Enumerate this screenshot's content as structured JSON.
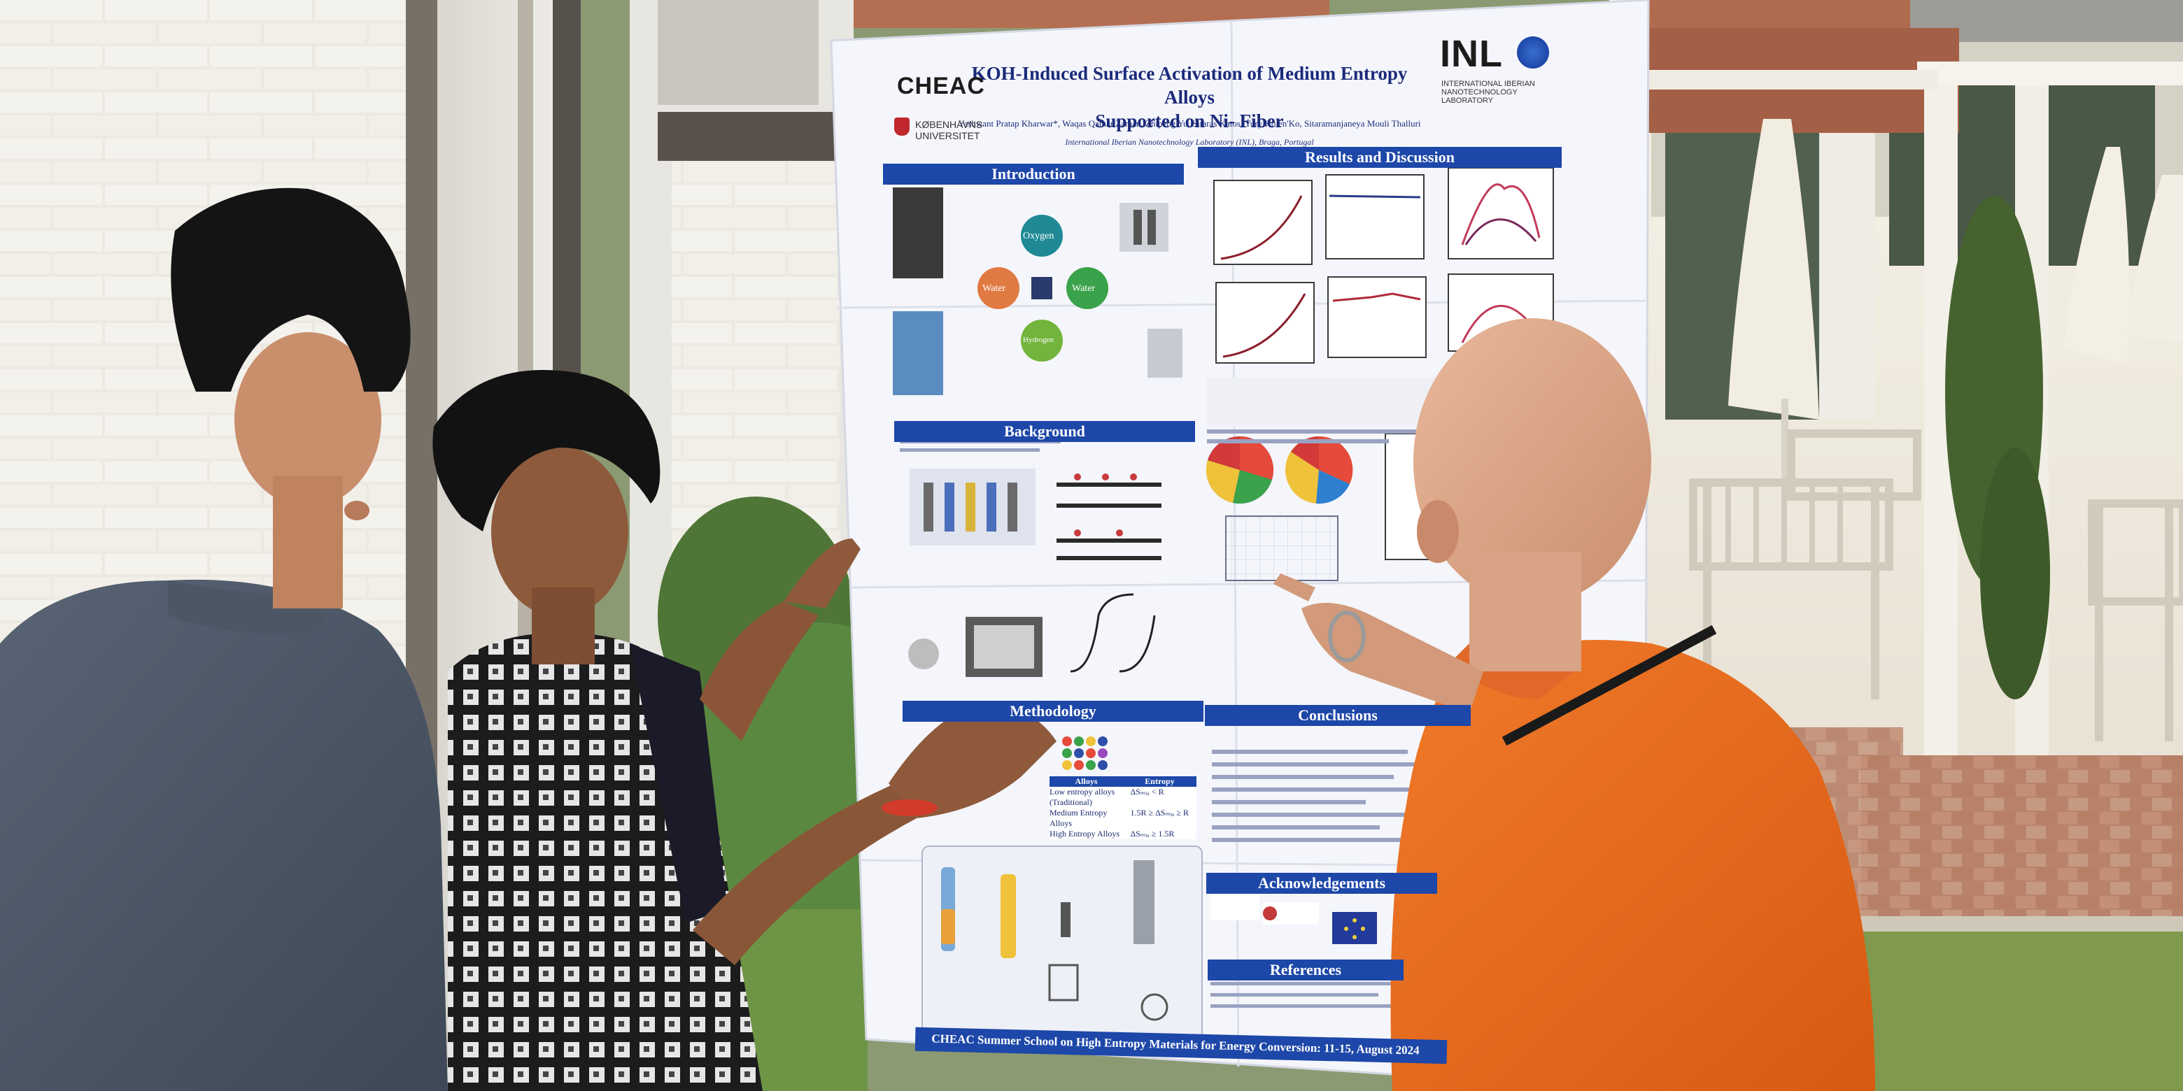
{
  "poster": {
    "title_line1": "KOH-Induced Surface Activation of Medium Entropy Alloys",
    "title_line2": "Supported on Ni- Fiber",
    "authors": "Yashwant Pratap Kharwar*, Waqas Qamar Zaman, Zhipeng Yu, Sitaras Katos, Yury Kolen'Ko, Sitaramanjaneya Mouli Thalluri",
    "affiliation": "International Iberian Nanotechnology Laboratory (INL), Braga, Portugal",
    "logos": {
      "cheac": "CHEAC",
      "ku_line1": "KØBENHAVNS",
      "ku_line2": "UNIVERSITET",
      "inl": "INL",
      "inl_sub1": "INTERNATIONAL IBERIAN",
      "inl_sub2": "NANOTECHNOLOGY",
      "inl_sub3": "LABORATORY"
    },
    "sections": {
      "introduction": "Introduction",
      "results": "Results and Discussion",
      "background": "Background",
      "methodology": "Methodology",
      "conclusions": "Conclusions",
      "acknowledgements": "Acknowledgements",
      "references": "References"
    },
    "intro_circles": [
      "Oxygen",
      "Water",
      "Water",
      "Hydrogen"
    ],
    "alloys_table": {
      "col1": "Alloys",
      "col2": "Entropy",
      "rows": [
        [
          "Low entropy alloys (Traditional)",
          "ΔSₘᵢₓ < R"
        ],
        [
          "Medium Entropy Alloys",
          "1.5R ≥ ΔSₘᵢₓ ≥ R"
        ],
        [
          "High Entropy Alloys",
          "ΔSₘᵢₓ ≥ 1.5R"
        ]
      ]
    },
    "footer": "CHEAC Summer School on High Entropy Materials for Energy Conversion: 11-15, August 2024"
  }
}
